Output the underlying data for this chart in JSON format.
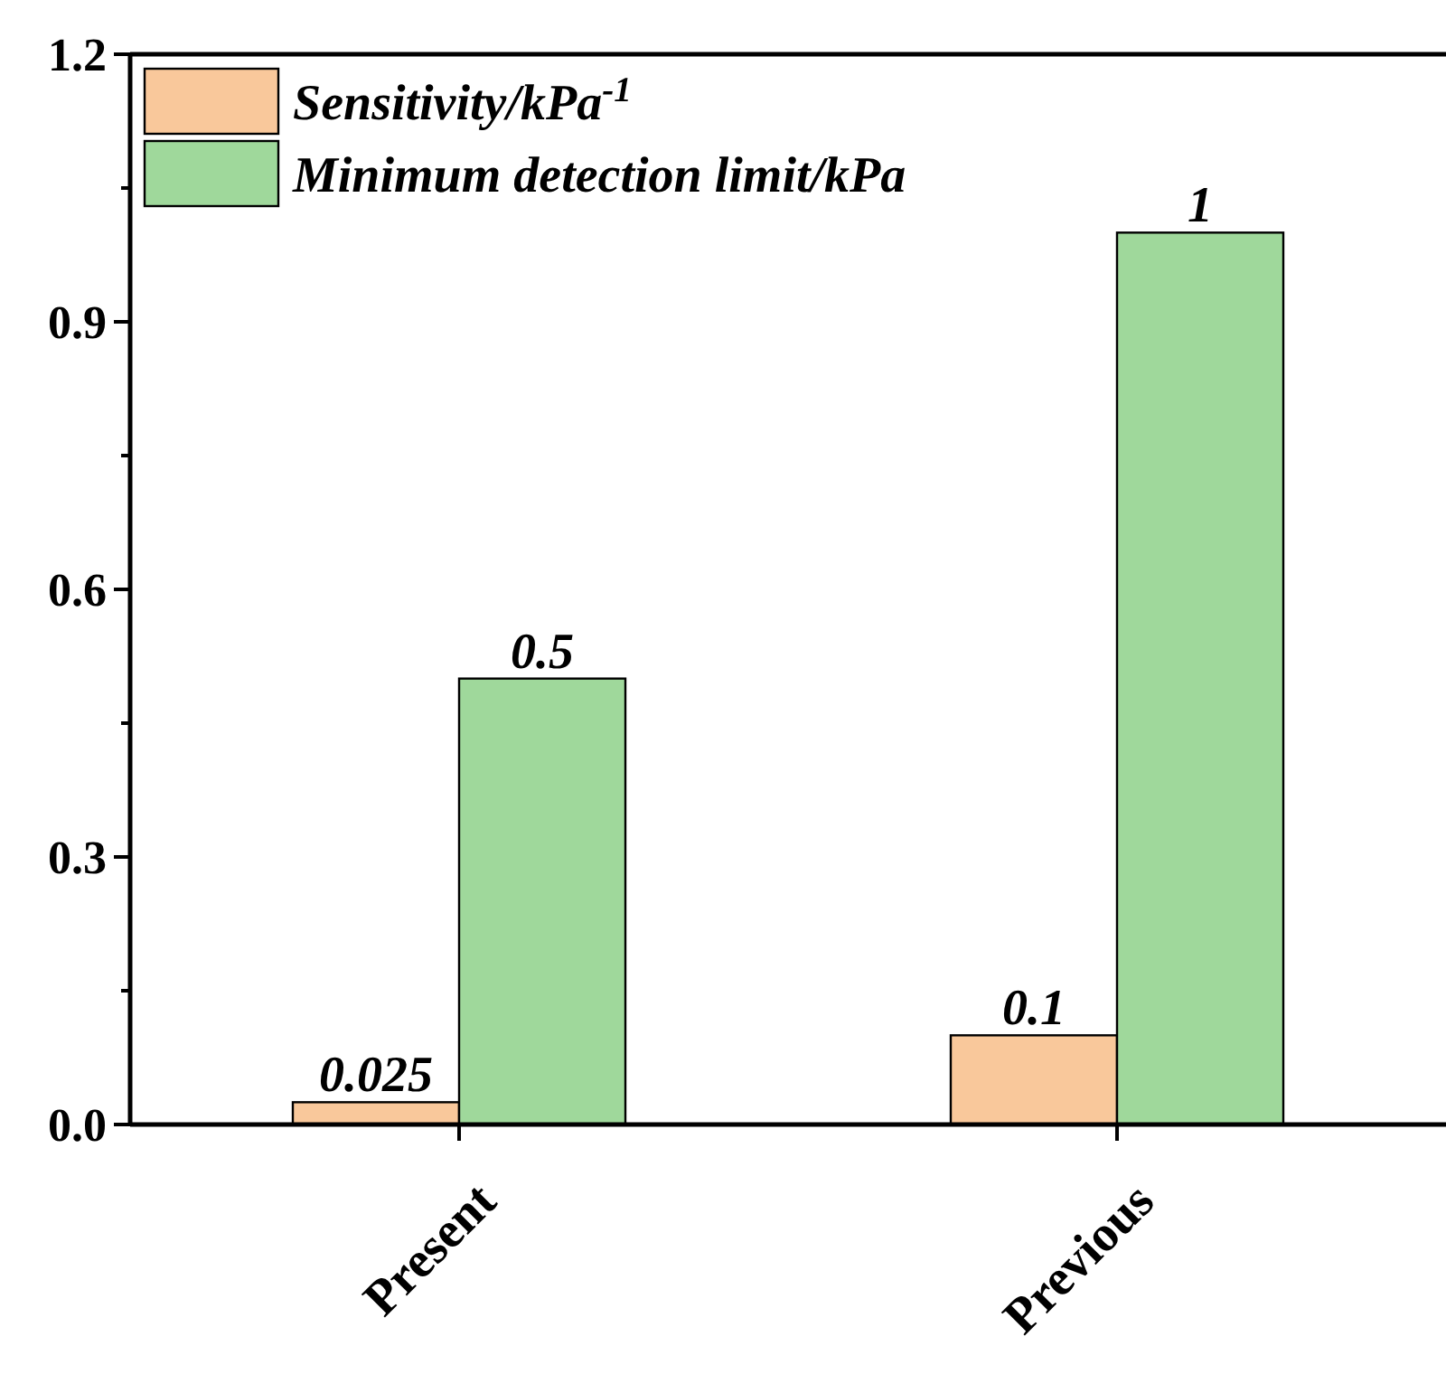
{
  "chart_data": {
    "type": "bar",
    "categories": [
      "Present",
      "Previous"
    ],
    "series": [
      {
        "name": "Sensitivity/kPa$^{-1}$",
        "color": "#f9c89b",
        "values": [
          0.025,
          0.1
        ]
      },
      {
        "name": "Minimum detection limit/kPa",
        "color": "#9fd89b",
        "values": [
          0.5,
          1
        ]
      }
    ],
    "ylim": [
      0,
      1.2
    ],
    "yticks": [
      {
        "value": 0,
        "label": "0.0"
      },
      {
        "value": 0.15,
        "label": null
      },
      {
        "value": 0.3,
        "label": "0.3"
      },
      {
        "value": 0.45,
        "label": null
      },
      {
        "value": 0.6,
        "label": "0.6"
      },
      {
        "value": 0.75,
        "label": null
      },
      {
        "value": 0.9,
        "label": "0.9"
      },
      {
        "value": 1.05,
        "label": null
      },
      {
        "value": 1.2,
        "label": "1.2"
      }
    ],
    "data_labels": true,
    "legend": "top left",
    "grid": false
  }
}
